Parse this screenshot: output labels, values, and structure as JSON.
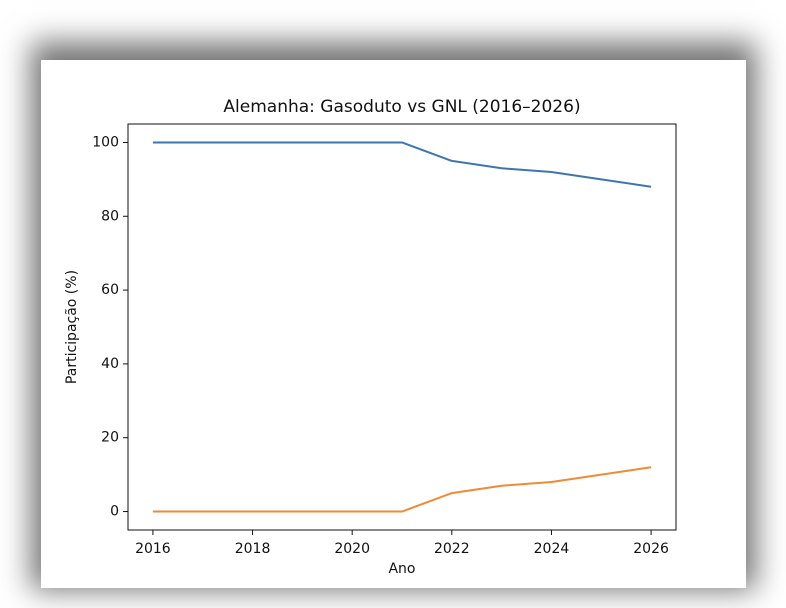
{
  "chart_data": {
    "type": "line",
    "title": "Alemanha: Gasoduto vs GNL (2016–2026)",
    "x_label": "Ano",
    "y_label": "Participação (%)",
    "x": [
      2016,
      2017,
      2018,
      2019,
      2020,
      2021,
      2022,
      2023,
      2024,
      2025,
      2026
    ],
    "series": [
      {
        "color": "#3d76af",
        "values": [
          100,
          100,
          100,
          100,
          100,
          100,
          95,
          93,
          92,
          90,
          88
        ]
      },
      {
        "color": "#ef8a38",
        "values": [
          0,
          0,
          0,
          0,
          0,
          0,
          5,
          7,
          8,
          10,
          12
        ]
      }
    ],
    "xlim": [
      2015.5,
      2026.5
    ],
    "xticks": [
      2016,
      2018,
      2020,
      2022,
      2024,
      2026
    ],
    "ylim": [
      -5,
      105
    ],
    "yticks": [
      0,
      20,
      40,
      60,
      80,
      100
    ]
  }
}
